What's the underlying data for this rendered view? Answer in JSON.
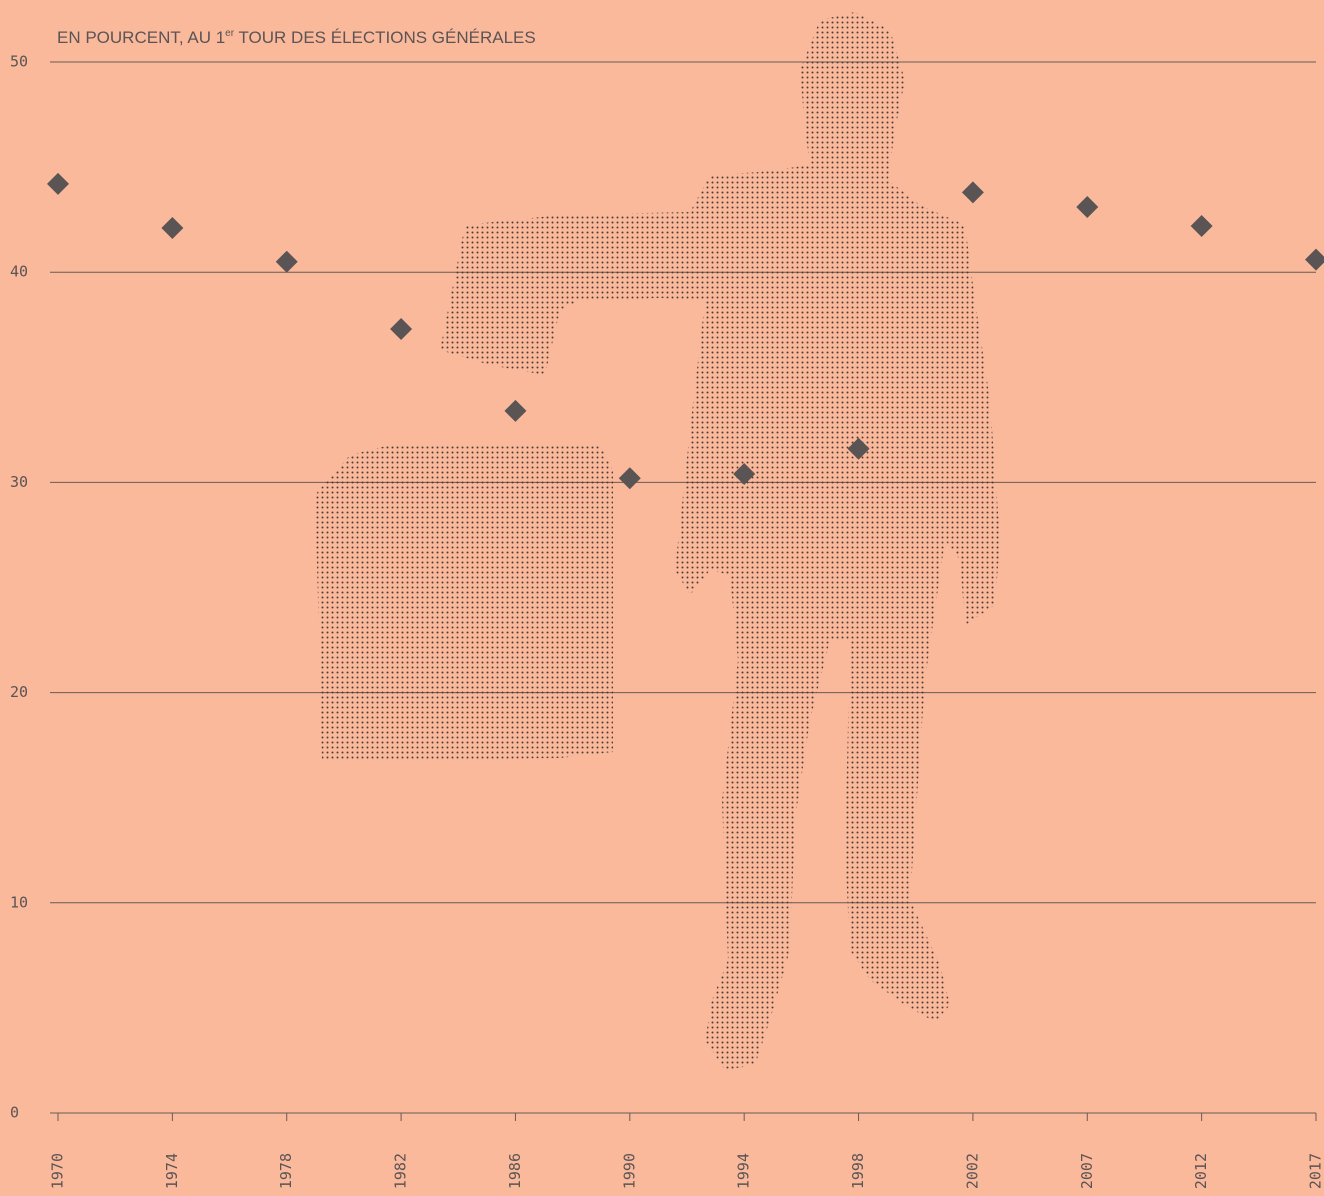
{
  "chart_data": {
    "type": "scatter",
    "subtitle": [
      "EN POURCENT, AU 1",
      "er",
      " TOUR DES ÉLECTIONS GÉNÉRALES"
    ],
    "categories": [
      "1970",
      "1974",
      "1978",
      "1982",
      "1986",
      "1990",
      "1994",
      "1998",
      "2002",
      "2007",
      "2012",
      "2017"
    ],
    "values": [
      44.2,
      42.1,
      40.5,
      37.3,
      33.4,
      30.2,
      30.4,
      31.6,
      43.8,
      43.1,
      42.2,
      40.6
    ],
    "color": "#5a5454",
    "ylim": [
      0,
      50
    ],
    "yticks": [
      0,
      10,
      20,
      30,
      40,
      50
    ],
    "grid": true
  }
}
